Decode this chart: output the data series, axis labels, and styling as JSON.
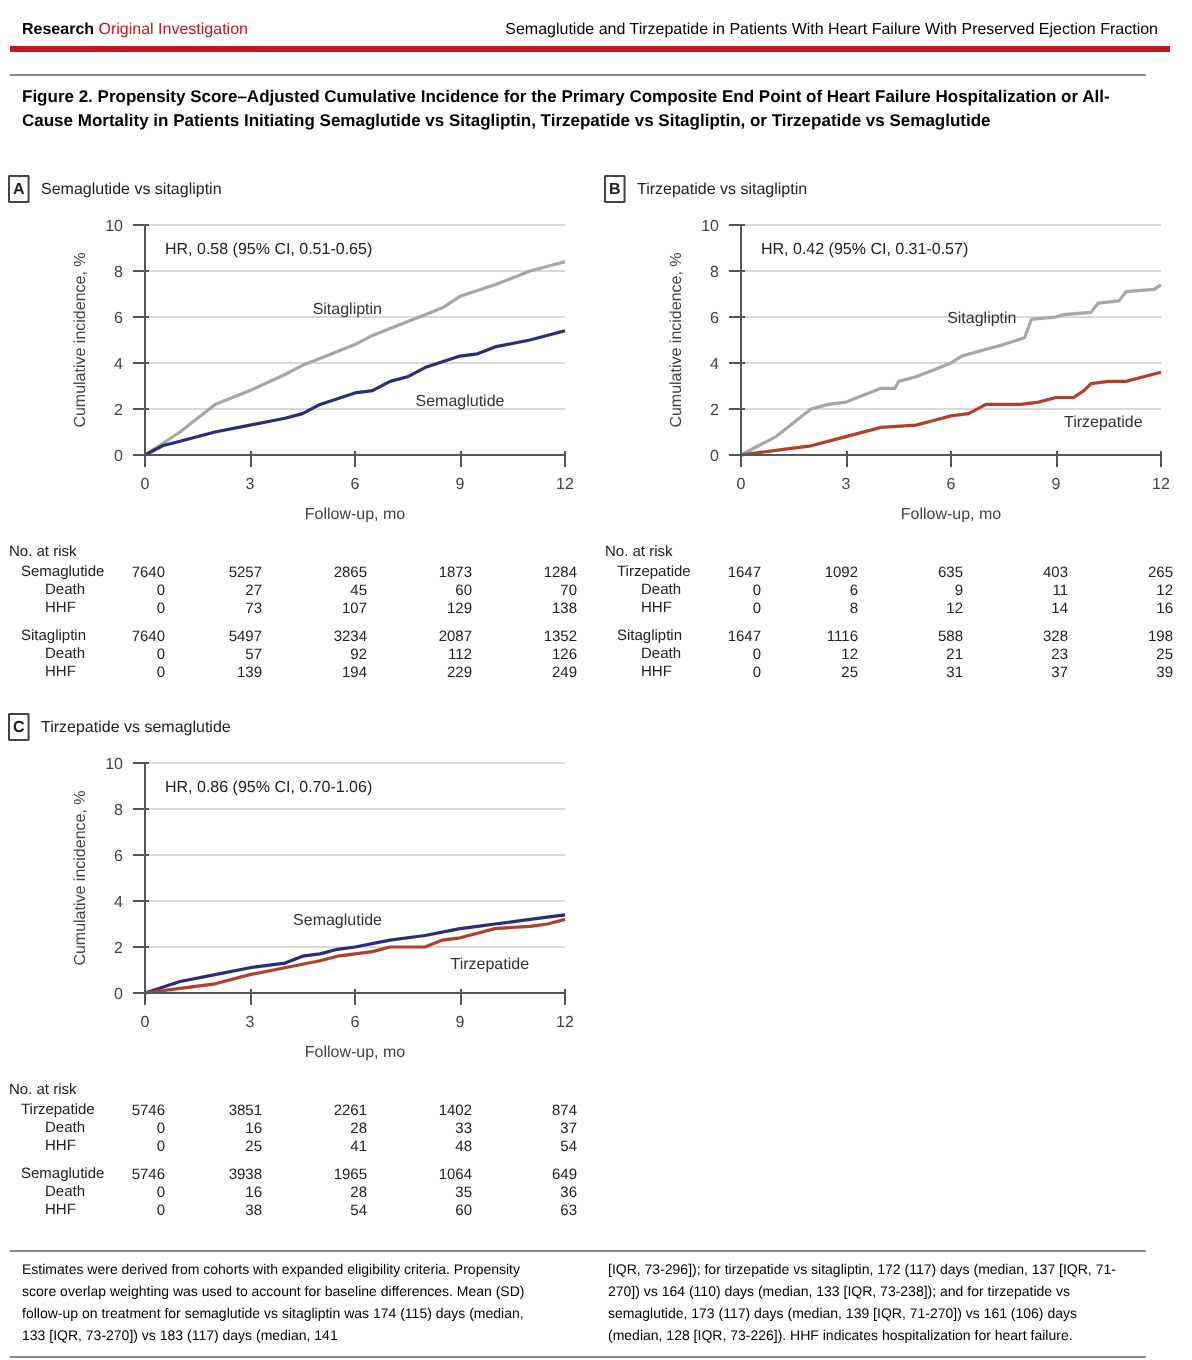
{
  "chart_data": [
    {
      "type": "line",
      "title": "Semaglutide vs sitagliptin",
      "xlabel": "Follow-up, mo",
      "ylabel": "Cumulative incidence, %",
      "xlim": [
        0,
        12
      ],
      "ylim": [
        0,
        10
      ],
      "xticks": [
        0,
        3,
        6,
        9,
        12
      ],
      "yticks": [
        0,
        2,
        4,
        6,
        8,
        10
      ],
      "grid": "y",
      "series": [
        {
          "name": "Sitagliptin",
          "color": "#a6a6a6",
          "x": [
            0,
            1,
            2,
            3,
            4,
            4.5,
            5,
            6,
            6.5,
            7,
            8,
            8.5,
            9,
            10,
            11,
            12
          ],
          "values": [
            0,
            1.0,
            2.2,
            2.8,
            3.5,
            3.9,
            4.2,
            4.8,
            5.2,
            5.5,
            6.1,
            6.4,
            6.9,
            7.4,
            8.0,
            8.4
          ]
        },
        {
          "name": "Semaglutide",
          "color": "#2b2c7c",
          "x": [
            0,
            0.5,
            1,
            2,
            3,
            4,
            4.5,
            5,
            6,
            6.5,
            7,
            7.5,
            8,
            9,
            9.5,
            10,
            11,
            12
          ],
          "values": [
            0,
            0.4,
            0.6,
            1.0,
            1.3,
            1.6,
            1.8,
            2.2,
            2.7,
            2.8,
            3.2,
            3.4,
            3.8,
            4.3,
            4.4,
            4.7,
            5.0,
            5.4
          ]
        }
      ],
      "annotations": [
        "A",
        "HR, 0.58 (95% CI, 0.51-0.65)",
        "No. at risk",
        "Semaglutide",
        "7640",
        "5257",
        "2865",
        "1873",
        "1284",
        "Death",
        "0",
        "27",
        "45",
        "60",
        "70",
        "HHF",
        "0",
        "73",
        "107",
        "129",
        "138",
        "Sitagliptin",
        "7640",
        "5497",
        "3234",
        "2087",
        "1352",
        "Death",
        "0",
        "57",
        "92",
        "112",
        "126",
        "HHF",
        "0",
        "139",
        "194",
        "229",
        "249",
        "Research",
        "Original Investigation",
        "Semaglutide and Tirzepatide in Patients With Heart Failure With Preserved Ejection Fraction",
        "Figure 2. Propensity Score–Adjusted Cumulative Incidence for the Primary Composite End Point of Heart Failure Hospitalization or All-Cause Mortality in Patients Initiating Semaglutide vs Sitagliptin, Tirzepatide vs Sitagliptin, or Tirzepatide vs Semaglutide",
        "Estimates were derived from cohorts with expanded eligibility criteria. Propensity score overlap weighting was used to account for baseline differences. Mean (SD) follow-up on treatment for semaglutide vs sitagliptin was 174 (115) days (median, 133 [IQR, 73-270]) vs 183 (117) days (median, 141",
        "[IQR, 73-296]); for tirzepatide vs sitagliptin, 172 (117) days (median, 137 [IQR, 71-270]) vs 164 (110) days (median, 133 [IQR, 73-238]); and for tirzepatide vs semaglutide, 173 (117) days (median, 139 [IQR, 71-270]) vs 161 (106) days (median, 128 [IQR, 73-226]). HHF indicates hospitalization for heart failure."
      ]
    },
    {
      "type": "line",
      "title": "Tirzepatide vs sitagliptin",
      "xlabel": "Follow-up, mo",
      "ylabel": "Cumulative incidence, %",
      "xlim": [
        0,
        12
      ],
      "ylim": [
        0,
        10
      ],
      "xticks": [
        0,
        3,
        6,
        9,
        12
      ],
      "yticks": [
        0,
        2,
        4,
        6,
        8,
        10
      ],
      "grid": "y",
      "series": [
        {
          "name": "Sitagliptin",
          "color": "#a6a6a6",
          "x": [
            0,
            1,
            2,
            2.5,
            3,
            4,
            4.4,
            4.5,
            5,
            5.5,
            6,
            6.3,
            7,
            7.5,
            8.1,
            8.3,
            9,
            9.2,
            10,
            10.2,
            10.8,
            11,
            11.8,
            12
          ],
          "values": [
            0,
            0.8,
            2.0,
            2.2,
            2.3,
            2.9,
            2.9,
            3.2,
            3.4,
            3.7,
            4.0,
            4.3,
            4.6,
            4.8,
            5.1,
            5.9,
            6.0,
            6.1,
            6.2,
            6.6,
            6.7,
            7.1,
            7.2,
            7.4
          ]
        },
        {
          "name": "Tirzepatide",
          "color": "#b0402c",
          "x": [
            0,
            0.5,
            1,
            2,
            3,
            4,
            5,
            5.5,
            6,
            6.5,
            7,
            8,
            8.5,
            9,
            9.5,
            9.8,
            10,
            10.5,
            11,
            11.5,
            12
          ],
          "values": [
            0,
            0.1,
            0.2,
            0.4,
            0.8,
            1.2,
            1.3,
            1.5,
            1.7,
            1.8,
            2.2,
            2.2,
            2.3,
            2.5,
            2.5,
            2.8,
            3.1,
            3.2,
            3.2,
            3.4,
            3.6
          ]
        }
      ],
      "annotations": [
        "B",
        "HR, 0.42 (95% CI, 0.31-0.57)",
        "No. at risk",
        "Tirzepatide",
        "1647",
        "1092",
        "635",
        "403",
        "265",
        "Death",
        "0",
        "6",
        "9",
        "11",
        "12",
        "HHF",
        "0",
        "8",
        "12",
        "14",
        "16",
        "Sitagliptin",
        "1647",
        "1116",
        "588",
        "328",
        "198",
        "Death",
        "0",
        "12",
        "21",
        "23",
        "25",
        "HHF",
        "0",
        "25",
        "31",
        "37",
        "39"
      ]
    },
    {
      "type": "line",
      "title": "Tirzepatide vs semaglutide",
      "xlabel": "Follow-up, mo",
      "ylabel": "Cumulative incidence, %",
      "xlim": [
        0,
        12
      ],
      "ylim": [
        0,
        10
      ],
      "xticks": [
        0,
        3,
        6,
        9,
        12
      ],
      "yticks": [
        0,
        2,
        4,
        6,
        8,
        10
      ],
      "grid": "y",
      "series": [
        {
          "name": "Semaglutide",
          "color": "#2b2c7c",
          "x": [
            0,
            1,
            2,
            3,
            4,
            4.5,
            5,
            5.5,
            6,
            7,
            8,
            9,
            9.5,
            10,
            11,
            12
          ],
          "values": [
            0,
            0.5,
            0.8,
            1.1,
            1.3,
            1.6,
            1.7,
            1.9,
            2.0,
            2.3,
            2.5,
            2.8,
            2.9,
            3.0,
            3.2,
            3.4
          ]
        },
        {
          "name": "Tirzepatide",
          "color": "#b0402c",
          "x": [
            0,
            1,
            2,
            3,
            4,
            5,
            5.5,
            6,
            6.5,
            7,
            8,
            8.5,
            9,
            9.5,
            10,
            11,
            11.5,
            12
          ],
          "values": [
            0,
            0.2,
            0.4,
            0.8,
            1.1,
            1.4,
            1.6,
            1.7,
            1.8,
            2.0,
            2.0,
            2.3,
            2.4,
            2.6,
            2.8,
            2.9,
            3.0,
            3.2
          ]
        }
      ],
      "annotations": [
        "C",
        "HR, 0.86 (95% CI, 0.70-1.06)",
        "No. at risk",
        "Tirzepatide",
        "5746",
        "3851",
        "2261",
        "1402",
        "874",
        "Death",
        "0",
        "16",
        "28",
        "33",
        "37",
        "HHF",
        "0",
        "25",
        "41",
        "48",
        "54",
        "Semaglutide",
        "5746",
        "3938",
        "1965",
        "1064",
        "649",
        "Death",
        "0",
        "16",
        "28",
        "35",
        "36",
        "HHF",
        "0",
        "38",
        "54",
        "60",
        "63"
      ]
    }
  ]
}
